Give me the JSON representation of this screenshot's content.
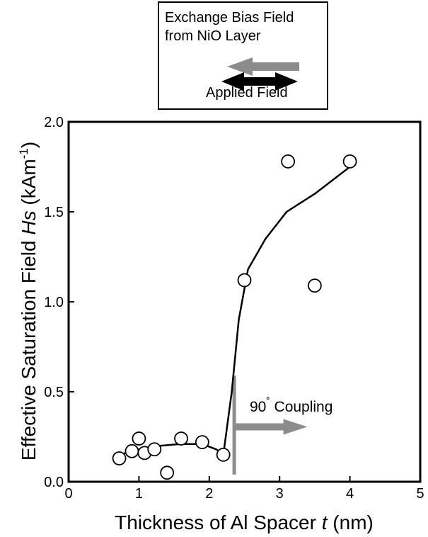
{
  "legend": {
    "exchange_line1": "Exchange Bias Field",
    "exchange_line2": "from NiO Layer",
    "applied": "Applied Field",
    "exchange_color": "#8c8c8c",
    "applied_color": "#000000"
  },
  "annotation": {
    "label": "90",
    "degree": "˚",
    "suffix": " Coupling",
    "x": 2.35,
    "color": "#8c8c8c"
  },
  "chart_data": {
    "type": "scatter",
    "xlabel_main": "Thickness of Al Spacer ",
    "xlabel_var": "t",
    "xlabel_unit": " (nm)",
    "ylabel_main": "Effective Saturation Field ",
    "ylabel_var": "Hs",
    "ylabel_unit": " (kAm",
    "ylabel_exp": "-1",
    "ylabel_close": ")",
    "xlim": [
      0,
      5
    ],
    "ylim": [
      0,
      2.0
    ],
    "xticks": [
      "0",
      "1",
      "2",
      "3",
      "4",
      "5"
    ],
    "yticks": [
      "0.0",
      "0.5",
      "1.0",
      "1.5",
      "2.0"
    ],
    "points": [
      {
        "x": 0.72,
        "y": 0.13
      },
      {
        "x": 0.9,
        "y": 0.17
      },
      {
        "x": 1.0,
        "y": 0.24
      },
      {
        "x": 1.08,
        "y": 0.16
      },
      {
        "x": 1.22,
        "y": 0.18
      },
      {
        "x": 1.4,
        "y": 0.05
      },
      {
        "x": 1.6,
        "y": 0.24
      },
      {
        "x": 1.9,
        "y": 0.22
      },
      {
        "x": 2.2,
        "y": 0.15
      },
      {
        "x": 2.5,
        "y": 1.12
      },
      {
        "x": 3.12,
        "y": 1.78
      },
      {
        "x": 3.5,
        "y": 1.09
      },
      {
        "x": 4.0,
        "y": 1.78
      }
    ],
    "trend_line": [
      {
        "x": 0.72,
        "y": 0.15
      },
      {
        "x": 1.0,
        "y": 0.18
      },
      {
        "x": 1.3,
        "y": 0.2
      },
      {
        "x": 1.6,
        "y": 0.21
      },
      {
        "x": 1.9,
        "y": 0.21
      },
      {
        "x": 2.1,
        "y": 0.18
      },
      {
        "x": 2.2,
        "y": 0.15
      },
      {
        "x": 2.32,
        "y": 0.5
      },
      {
        "x": 2.42,
        "y": 0.9
      },
      {
        "x": 2.55,
        "y": 1.18
      },
      {
        "x": 2.8,
        "y": 1.35
      },
      {
        "x": 3.1,
        "y": 1.5
      },
      {
        "x": 3.5,
        "y": 1.6
      },
      {
        "x": 4.0,
        "y": 1.75
      }
    ]
  }
}
